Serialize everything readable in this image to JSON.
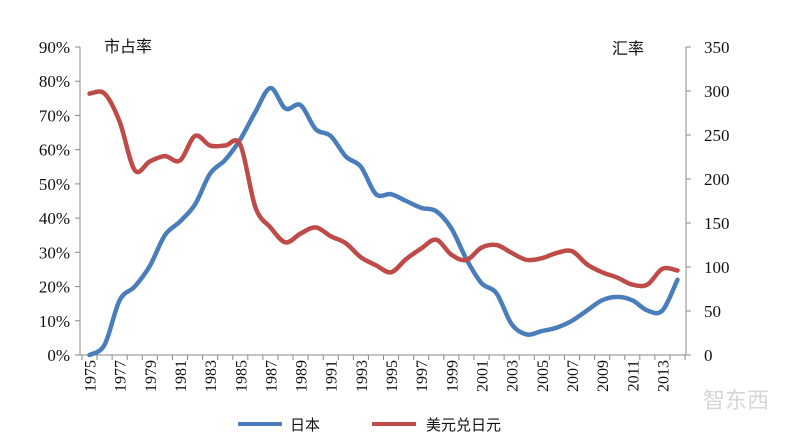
{
  "chart_data": {
    "type": "line",
    "title": "",
    "y_left_label": "市占率",
    "y_right_label": "汇率",
    "y_left_ticks": [
      "0%",
      "10%",
      "20%",
      "30%",
      "40%",
      "50%",
      "60%",
      "70%",
      "80%",
      "90%"
    ],
    "y_right_ticks": [
      "0",
      "50",
      "100",
      "150",
      "200",
      "250",
      "300",
      "350"
    ],
    "ylim_left": [
      0,
      90
    ],
    "ylim_right": [
      0,
      350
    ],
    "xlim": [
      1975,
      2014
    ],
    "x_tick_labels": [
      "1975",
      "1977",
      "1979",
      "1981",
      "1983",
      "1985",
      "1987",
      "1989",
      "1991",
      "1993",
      "1995",
      "1997",
      "1999",
      "2001",
      "2003",
      "2005",
      "2007",
      "2009",
      "2011",
      "2013"
    ],
    "legend_position": "bottom",
    "series": [
      {
        "name": "日本",
        "axis": "left",
        "color": "#4a7ebb",
        "x": [
          1975,
          1976,
          1977,
          1978,
          1979,
          1980,
          1981,
          1982,
          1983,
          1984,
          1985,
          1986,
          1987,
          1988,
          1989,
          1990,
          1991,
          1992,
          1993,
          1994,
          1995,
          1996,
          1997,
          1998,
          1999,
          2000,
          2001,
          2002,
          2003,
          2004,
          2005,
          2006,
          2007,
          2008,
          2009,
          2010,
          2011,
          2012,
          2013,
          2014
        ],
        "values": [
          0,
          3,
          16,
          20,
          26,
          35,
          39,
          44,
          53,
          57,
          63,
          71,
          78,
          72,
          73,
          66,
          64,
          58,
          55,
          47,
          47,
          45,
          43,
          42,
          37,
          28,
          21,
          18,
          9,
          6,
          7,
          8,
          10,
          13,
          16,
          17,
          16,
          13,
          13,
          22
        ]
      },
      {
        "name": "美元兑日元",
        "axis": "right",
        "color": "#be4b48",
        "x": [
          1975,
          1976,
          1977,
          1978,
          1979,
          1980,
          1981,
          1982,
          1983,
          1984,
          1985,
          1986,
          1987,
          1988,
          1989,
          1990,
          1991,
          1992,
          1993,
          1994,
          1995,
          1996,
          1997,
          1998,
          1999,
          2000,
          2001,
          2002,
          2003,
          2004,
          2005,
          2006,
          2007,
          2008,
          2009,
          2010,
          2011,
          2012,
          2013,
          2014
        ],
        "values": [
          297,
          297,
          265,
          210,
          220,
          226,
          221,
          249,
          238,
          238,
          239,
          168,
          145,
          128,
          138,
          145,
          135,
          127,
          111,
          102,
          94,
          109,
          121,
          131,
          114,
          108,
          122,
          125,
          116,
          108,
          110,
          116,
          118,
          103,
          94,
          88,
          80,
          80,
          98,
          96
        ]
      }
    ]
  },
  "watermark": "智东西"
}
